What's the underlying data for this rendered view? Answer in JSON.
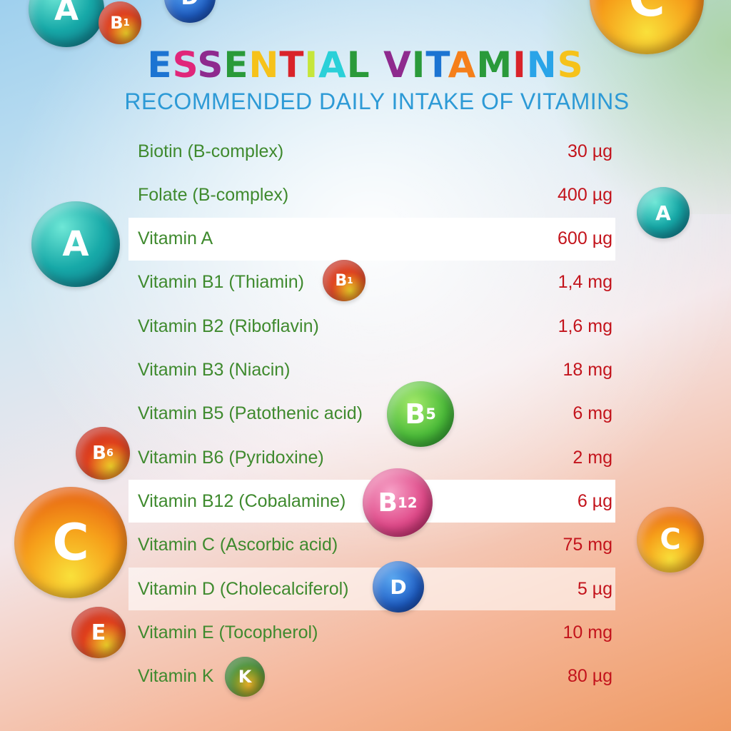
{
  "title": {
    "letters": [
      {
        "ch": "E",
        "color": "#1c74d2"
      },
      {
        "ch": "S",
        "color": "#e0267a"
      },
      {
        "ch": "S",
        "color": "#8e2a8e"
      },
      {
        "ch": "E",
        "color": "#2a9a3a"
      },
      {
        "ch": "N",
        "color": "#f6c21a"
      },
      {
        "ch": "T",
        "color": "#d9232a"
      },
      {
        "ch": "I",
        "color": "#c6e63a"
      },
      {
        "ch": "A",
        "color": "#2ad0d8"
      },
      {
        "ch": "L",
        "color": "#2a9a3a"
      },
      {
        "ch": " ",
        "color": "#000000"
      },
      {
        "ch": "V",
        "color": "#8e2a8e"
      },
      {
        "ch": "I",
        "color": "#2a9a3a"
      },
      {
        "ch": "T",
        "color": "#1c74d2"
      },
      {
        "ch": "A",
        "color": "#f57f1a"
      },
      {
        "ch": "M",
        "color": "#2a9a3a"
      },
      {
        "ch": "I",
        "color": "#d9232a"
      },
      {
        "ch": "N",
        "color": "#2aa4e8"
      },
      {
        "ch": "S",
        "color": "#f6c21a"
      }
    ],
    "text": "ESSENTIAL VITAMINS"
  },
  "subtitle": "RECOMMENDED DAILY INTAKE OF VITAMINS",
  "rows": [
    {
      "name": "Biotin (B-complex)",
      "amount": "30 µg"
    },
    {
      "name": "Folate (B-complex)",
      "amount": "400 µg"
    },
    {
      "name": "Vitamin A",
      "amount": "600 µg"
    },
    {
      "name": "Vitamin B1 (Thiamin)",
      "amount": "1,4 mg"
    },
    {
      "name": "Vitamin B2 (Riboflavin)",
      "amount": "1,6 mg"
    },
    {
      "name": "Vitamin B3 (Niacin)",
      "amount": "18 mg"
    },
    {
      "name": "Vitamin B5 (Patothenic acid)",
      "amount": "6 mg"
    },
    {
      "name": "Vitamin B6 (Pyridoxine)",
      "amount": "2 mg"
    },
    {
      "name": "Vitamin B12 (Cobalamine)",
      "amount": "6 µg"
    },
    {
      "name": "Vitamin C (Ascorbic acid)",
      "amount": "75 mg"
    },
    {
      "name": "Vitamin D (Cholecalciferol)",
      "amount": "5 µg"
    },
    {
      "name": "Vitamin E (Tocopherol)",
      "amount": "10 mg"
    },
    {
      "name": "Vitamin K",
      "amount": "80 µg"
    }
  ],
  "bubbles": {
    "a": "A",
    "b": "B",
    "c": "C",
    "d": "D",
    "e": "E",
    "k": "K",
    "sup1": "1",
    "sup5": "5",
    "sup6": "6",
    "sup12": "12"
  }
}
